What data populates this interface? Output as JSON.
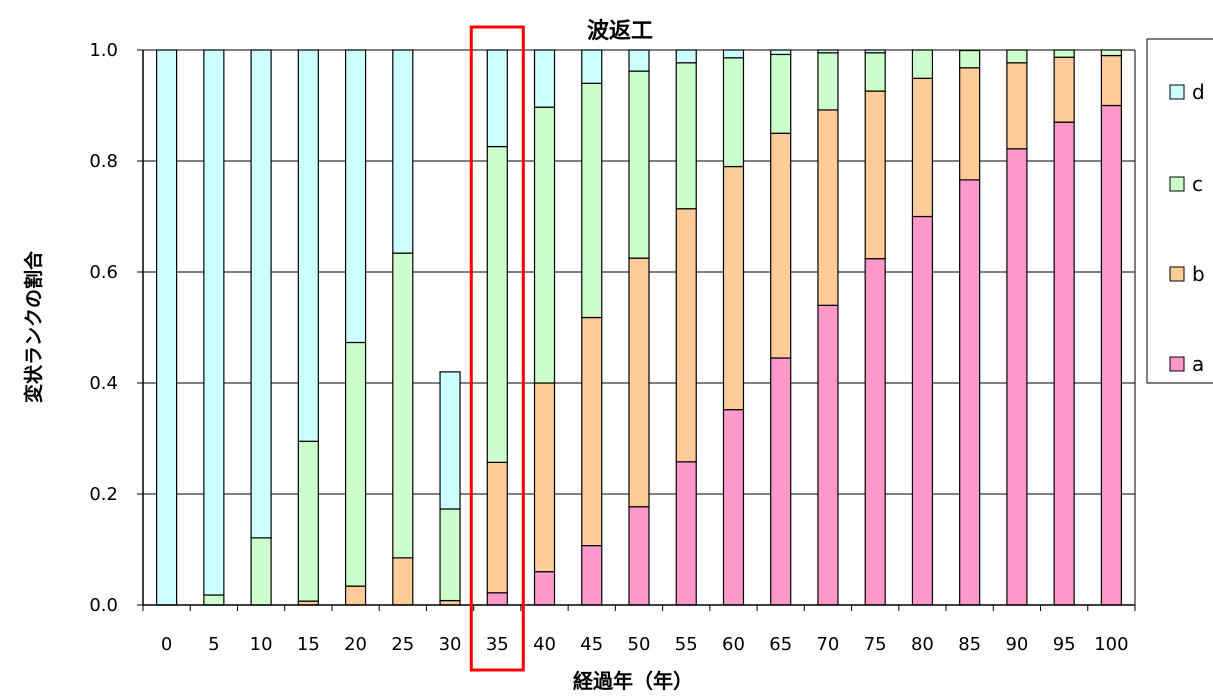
{
  "chart_data": {
    "type": "bar",
    "stacked": true,
    "percent": true,
    "title": "波返工",
    "xlabel": "経過年（年）",
    "ylabel": "変状ランクの割合",
    "ylim": [
      0,
      1.0
    ],
    "y_ticks": [
      "0.0",
      "0.2",
      "0.4",
      "0.6",
      "0.8",
      "1.0"
    ],
    "grid": true,
    "legend_position": "right",
    "categories": [
      "0",
      "5",
      "10",
      "15",
      "20",
      "25",
      "30",
      "35",
      "40",
      "45",
      "50",
      "55",
      "60",
      "65",
      "70",
      "75",
      "80",
      "85",
      "90",
      "95",
      "100"
    ],
    "series": [
      {
        "name": "a",
        "color": "#ff99cc",
        "values": [
          0,
          0,
          0,
          0,
          0,
          0,
          0,
          0.022,
          0.06,
          0.107,
          0.177,
          0.258,
          0.352,
          0.445,
          0.54,
          0.624,
          0.7,
          0.766,
          0.822,
          0.87,
          0.9
        ]
      },
      {
        "name": "b",
        "color": "#ffcc99",
        "values": [
          0,
          0,
          0,
          0.007,
          0.034,
          0.085,
          0.008,
          0.235,
          0.34,
          0.411,
          0.448,
          0.456,
          0.438,
          0.405,
          0.352,
          0.302,
          0.249,
          0.202,
          0.155,
          0.117,
          0.09
        ]
      },
      {
        "name": "c",
        "color": "#ccffcc",
        "values": [
          0,
          0.018,
          0.121,
          0.288,
          0.439,
          0.549,
          0.165,
          0.569,
          0.497,
          0.422,
          0.337,
          0.263,
          0.196,
          0.142,
          0.103,
          0.069,
          0.051,
          0.031,
          0.023,
          0.013,
          0.01
        ]
      },
      {
        "name": "d",
        "color": "#ccffff",
        "values": [
          1,
          0.982,
          0.879,
          0.705,
          0.527,
          0.366,
          0.247,
          0.174,
          0.103,
          0.06,
          0.038,
          0.023,
          0.014,
          0.008,
          0.005,
          0.005,
          0,
          0,
          0,
          0,
          0
        ]
      }
    ],
    "highlight": {
      "category": "35",
      "color": "#ff0000"
    },
    "legend_order": [
      "d",
      "c",
      "b",
      "a"
    ]
  }
}
